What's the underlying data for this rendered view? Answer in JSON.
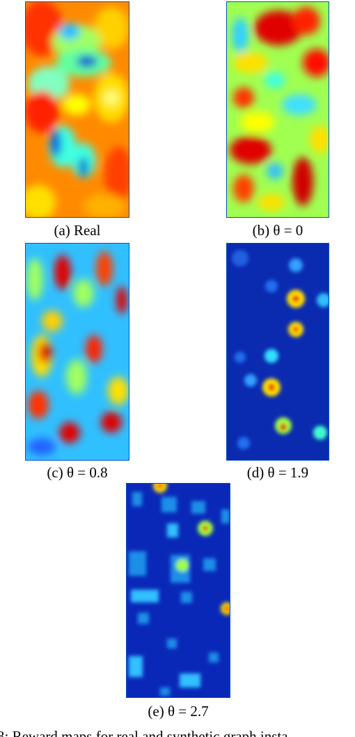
{
  "figure": {
    "panels": [
      {
        "caption": "(a) Real"
      },
      {
        "caption": "(b) θ = 0"
      },
      {
        "caption": "(c) θ = 0.8"
      },
      {
        "caption": "(d) θ = 1.9"
      },
      {
        "caption": "(e) θ = 2.7"
      }
    ],
    "caption": "3: Reward maps for real and synthetic graph insta"
  }
}
